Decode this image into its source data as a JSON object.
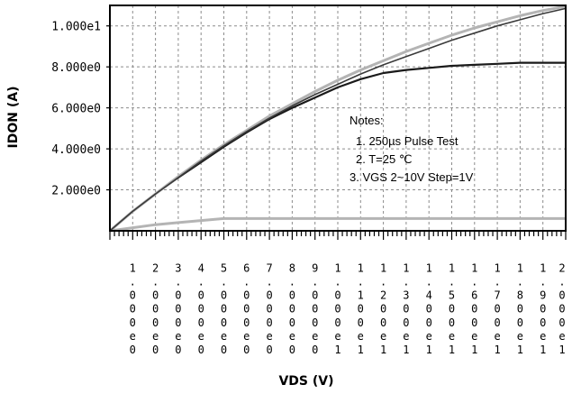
{
  "chart_data": {
    "type": "line",
    "title": "",
    "xlabel": "VDS (V)",
    "ylabel": "IDON (A)",
    "xlim": [
      0,
      20
    ],
    "ylim": [
      0,
      11
    ],
    "x_tick_labels": [
      "1.000e0",
      "2.000e0",
      "3.000e0",
      "4.000e0",
      "5.000e0",
      "6.000e0",
      "7.000e0",
      "8.000e0",
      "9.000e0",
      "1.000e1",
      "1.100e1",
      "1.200e1",
      "1.300e1",
      "1.400e1",
      "1.500e1",
      "1.600e1",
      "1.700e1",
      "1.800e1",
      "1.900e1",
      "2.000e1"
    ],
    "y_tick_labels": [
      "2.000e0",
      "4.000e0",
      "6.000e0",
      "8.000e0",
      "1.000e1"
    ],
    "y_tick_values": [
      2,
      4,
      6,
      8,
      10
    ],
    "grid": true,
    "notes": {
      "heading": "Notes:",
      "line1": "1. 250µs  Pulse Test",
      "line2": "2. T=25 ℃",
      "line3": "3. VGS  2~10V  Step=1V"
    },
    "series": [
      {
        "color": "#b4b4b4",
        "width": 3,
        "x": [
          0,
          1,
          2,
          3,
          4,
          5,
          6,
          7,
          8,
          9,
          10,
          11,
          12,
          13,
          14,
          15,
          16,
          17,
          18,
          19,
          20
        ],
        "y": [
          0,
          0.15,
          0.3,
          0.4,
          0.5,
          0.6,
          0.6,
          0.6,
          0.6,
          0.6,
          0.6,
          0.6,
          0.6,
          0.6,
          0.6,
          0.6,
          0.6,
          0.6,
          0.6,
          0.6,
          0.6
        ]
      },
      {
        "color": "#1a1a1a",
        "width": 2.2,
        "x": [
          0,
          1,
          2,
          3,
          4,
          5,
          6,
          7,
          8,
          9,
          10,
          11,
          12,
          13,
          14,
          15,
          16,
          17,
          18,
          19,
          20
        ],
        "y": [
          0,
          0.95,
          1.8,
          2.6,
          3.35,
          4.1,
          4.8,
          5.45,
          6.0,
          6.5,
          7.0,
          7.4,
          7.7,
          7.85,
          7.95,
          8.05,
          8.1,
          8.15,
          8.2,
          8.2,
          8.2
        ]
      },
      {
        "color": "#b4b4b4",
        "width": 3,
        "x": [
          0,
          1,
          2,
          3,
          4,
          5,
          6,
          7,
          8,
          9,
          10,
          11,
          12,
          13,
          14,
          15,
          16,
          17,
          18,
          19,
          20
        ],
        "y": [
          0,
          0.95,
          1.8,
          2.65,
          3.45,
          4.2,
          4.9,
          5.6,
          6.2,
          6.8,
          7.35,
          7.85,
          8.3,
          8.75,
          9.15,
          9.55,
          9.9,
          10.2,
          10.5,
          10.75,
          10.95
        ]
      },
      {
        "color": "#3a3a3a",
        "width": 1.6,
        "x": [
          0,
          1,
          2,
          3,
          4,
          5,
          6,
          7,
          8,
          9,
          10,
          11,
          12,
          13,
          14,
          15,
          16,
          17,
          18,
          19,
          20
        ],
        "y": [
          0,
          0.95,
          1.8,
          2.6,
          3.4,
          4.15,
          4.85,
          5.5,
          6.1,
          6.65,
          7.15,
          7.65,
          8.1,
          8.5,
          8.9,
          9.3,
          9.65,
          10.0,
          10.3,
          10.6,
          10.85
        ]
      }
    ]
  }
}
